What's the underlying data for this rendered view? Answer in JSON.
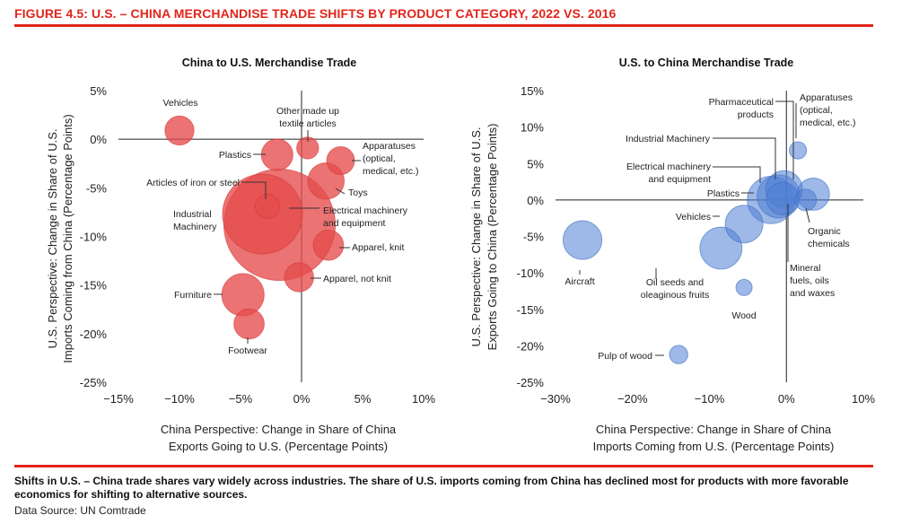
{
  "figure_title": "FIGURE 4.5: U.S. – CHINA MERCHANDISE TRADE SHIFTS BY PRODUCT CATEGORY, 2022 VS. 2016",
  "footer": {
    "takeaway": "Shifts in U.S. – China trade shares vary widely across industries. The share of U.S. imports coming from China has declined most for products with more favorable economics for shifting to alternative sources.",
    "source": "Data Source: UN Comtrade"
  },
  "colors": {
    "accent": "#e1251b",
    "left_bubbles": "#e54b4b",
    "right_bubbles": "#4f7ed3"
  },
  "chart_data": [
    {
      "type": "scatter",
      "subtype": "bubble",
      "title": "China to U.S. Merchandise Trade",
      "xlabel": [
        "China Perspective: Change in Share of China",
        "Exports Going to U.S. (Percentage Points)"
      ],
      "ylabel": [
        "U.S. Perspective: Change in Share of U.S.",
        "Imports Coming from China (Percentage Points)"
      ],
      "xlim": [
        -15,
        10
      ],
      "ylim": [
        -25,
        5
      ],
      "xticks": [
        -15,
        -10,
        -5,
        0,
        5,
        10
      ],
      "xticklabels": [
        "−15%",
        "−10%",
        "−5%",
        "0%",
        "5%",
        "10%"
      ],
      "yticks": [
        5,
        0,
        -5,
        -10,
        -15,
        -20,
        -25
      ],
      "yticklabels": [
        "5%",
        "0%",
        "-5%",
        "-10%",
        "-15%",
        "-20%",
        "-25%"
      ],
      "grid": false,
      "points": [
        {
          "label": [
            "Vehicles"
          ],
          "x": -10.0,
          "y": 0.9,
          "size": 1.2
        },
        {
          "label": [
            "Plastics"
          ],
          "x": -2.0,
          "y": -1.6,
          "size": 1.3
        },
        {
          "label": [
            "Other made up",
            "textile articles"
          ],
          "x": 0.5,
          "y": -0.9,
          "size": 0.9
        },
        {
          "label": [
            "Apparatuses",
            "(optical,",
            "medical, etc.)"
          ],
          "x": 3.2,
          "y": -2.2,
          "size": 1.15
        },
        {
          "label": [
            "Toys"
          ],
          "x": 2.0,
          "y": -4.3,
          "size": 1.5
        },
        {
          "label": [
            "Articles of iron or steel"
          ],
          "x": -2.8,
          "y": -6.9,
          "size": 1.0
        },
        {
          "label": [
            "Industrial",
            "Machinery"
          ],
          "x": -3.2,
          "y": -7.7,
          "size": 3.3
        },
        {
          "label": [
            "Electrical machinery",
            "and equipment"
          ],
          "x": -1.8,
          "y": -8.8,
          "size": 4.6
        },
        {
          "label": [
            "Apparel, knit"
          ],
          "x": 2.2,
          "y": -10.9,
          "size": 1.25
        },
        {
          "label": [
            "Apparel, not knit"
          ],
          "x": -0.2,
          "y": -14.2,
          "size": 1.2
        },
        {
          "label": [
            "Furniture"
          ],
          "x": -4.8,
          "y": -16.0,
          "size": 1.75
        },
        {
          "label": [
            "Footwear"
          ],
          "x": -4.3,
          "y": -19.0,
          "size": 1.25
        }
      ]
    },
    {
      "type": "scatter",
      "subtype": "bubble",
      "title": "U.S. to China Merchandise Trade",
      "xlabel": [
        "China Perspective: Change in Share of China",
        "Imports Coming from U.S. (Percentage Points)"
      ],
      "ylabel": [
        "U.S. Perspective: Change in Share of U.S.",
        "Exports Going to China (Percentage Points)"
      ],
      "xlim": [
        -30,
        10
      ],
      "ylim": [
        -25,
        15
      ],
      "xticks": [
        -30,
        -20,
        -10,
        0,
        10
      ],
      "xticklabels": [
        "−30%",
        "−20%",
        "−10%",
        "0%",
        "10%"
      ],
      "yticks": [
        15,
        10,
        5,
        0,
        -5,
        -10,
        -15,
        -20,
        -25
      ],
      "yticklabels": [
        "15%",
        "10%",
        "5%",
        "0%",
        "-5%",
        "-10%",
        "-15%",
        "-20%",
        "-25%"
      ],
      "grid": false,
      "points": [
        {
          "label": [
            "Aircraft"
          ],
          "x": -26.5,
          "y": -5.5,
          "size": 1.8
        },
        {
          "label": [
            "Pulp of wood"
          ],
          "x": -14.0,
          "y": -21.2,
          "size": 0.85
        },
        {
          "label": [
            "Oil seeds and",
            "oleaginous fruits"
          ],
          "x": -8.5,
          "y": -6.6,
          "size": 1.95
        },
        {
          "label": [
            "Wood"
          ],
          "x": -5.5,
          "y": -12.0,
          "size": 0.75
        },
        {
          "label": [
            "Vehicles"
          ],
          "x": -5.5,
          "y": -3.3,
          "size": 1.75
        },
        {
          "label": [
            "Electrical machinery",
            "and equipment"
          ],
          "x": -2.0,
          "y": 0.0,
          "size": 2.2
        },
        {
          "label": [
            "Industrial Machinery"
          ],
          "x": -1.0,
          "y": 0.5,
          "size": 2.0
        },
        {
          "label": [
            "Plastics"
          ],
          "x": -0.5,
          "y": 0.2,
          "size": 1.5
        },
        {
          "label": [
            "Pharmaceutical",
            "products"
          ],
          "x": -0.3,
          "y": 1.5,
          "size": 1.7
        },
        {
          "label": [
            "Apparatuses",
            "(optical,",
            "medical, etc.)"
          ],
          "x": 1.5,
          "y": 6.8,
          "size": 0.8
        },
        {
          "label": [
            "Organic",
            "chemicals"
          ],
          "x": 3.5,
          "y": 0.8,
          "size": 1.5
        },
        {
          "label": [
            "Mineral",
            "fuels, oils",
            "and waxes"
          ],
          "x": 2.5,
          "y": 0.0,
          "size": 1.0
        }
      ]
    }
  ]
}
